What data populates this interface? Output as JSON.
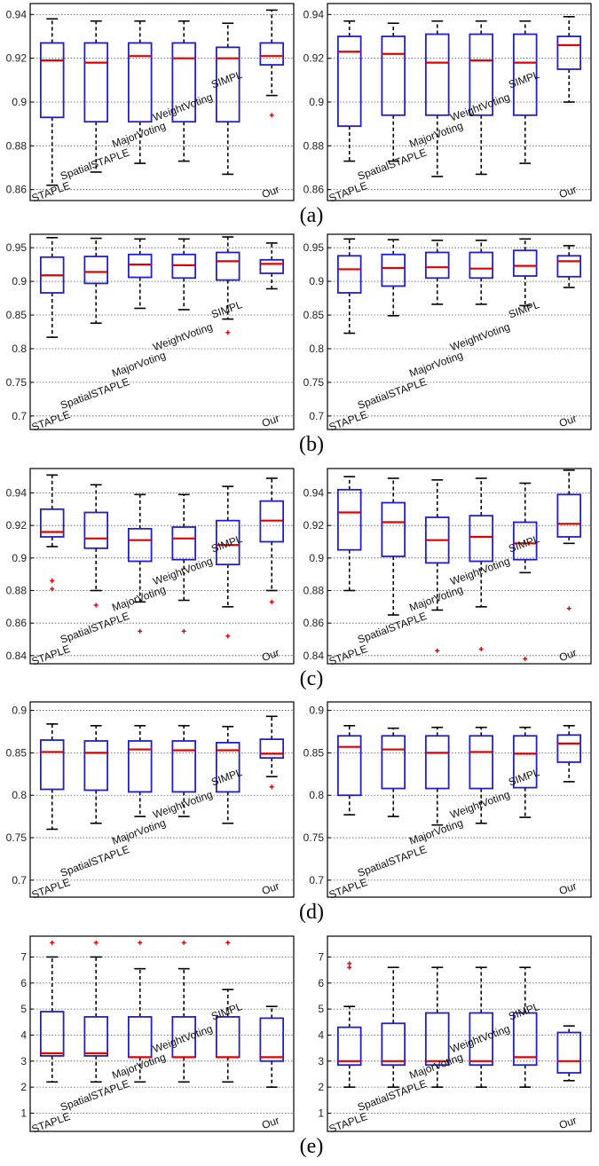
{
  "figure": {
    "panel_labels": [
      "(a)",
      "(b)",
      "(c)",
      "(d)",
      "(e)"
    ]
  },
  "chart_data": [
    {
      "type": "box",
      "panel": "(a)",
      "side": "left",
      "categories": [
        "STAPLE",
        "SpatialSTAPLE",
        "MajorVoting",
        "WeightVoting",
        "SIMPL",
        "Our"
      ],
      "ylim": [
        0.855,
        0.945
      ],
      "yticks": [
        0.86,
        0.88,
        0.9,
        0.92,
        0.94
      ],
      "ytick_labels": [
        "0.86",
        "0.88",
        "0.9",
        "0.92",
        "0.94"
      ],
      "grid": true,
      "boxes": [
        {
          "min": 0.862,
          "q1": 0.893,
          "median": 0.919,
          "q3": 0.927,
          "max": 0.938,
          "outliers": []
        },
        {
          "min": 0.868,
          "q1": 0.891,
          "median": 0.918,
          "q3": 0.927,
          "max": 0.937,
          "outliers": []
        },
        {
          "min": 0.872,
          "q1": 0.891,
          "median": 0.921,
          "q3": 0.927,
          "max": 0.937,
          "outliers": []
        },
        {
          "min": 0.873,
          "q1": 0.891,
          "median": 0.92,
          "q3": 0.927,
          "max": 0.937,
          "outliers": []
        },
        {
          "min": 0.867,
          "q1": 0.891,
          "median": 0.92,
          "q3": 0.925,
          "max": 0.936,
          "outliers": []
        },
        {
          "min": 0.903,
          "q1": 0.917,
          "median": 0.921,
          "q3": 0.927,
          "max": 0.942,
          "outliers": [
            0.894
          ]
        }
      ]
    },
    {
      "type": "box",
      "panel": "(a)",
      "side": "right",
      "categories": [
        "STAPLE",
        "SpatialSTAPLE",
        "MajorVoting",
        "WeightVoting",
        "SIMPL",
        "Our"
      ],
      "ylim": [
        0.855,
        0.945
      ],
      "yticks": [
        0.86,
        0.88,
        0.9,
        0.92,
        0.94
      ],
      "ytick_labels": [
        "0.86",
        "0.88",
        "0.9",
        "0.92",
        "0.94"
      ],
      "grid": true,
      "boxes": [
        {
          "min": 0.873,
          "q1": 0.889,
          "median": 0.923,
          "q3": 0.93,
          "max": 0.937,
          "outliers": []
        },
        {
          "min": 0.873,
          "q1": 0.894,
          "median": 0.922,
          "q3": 0.93,
          "max": 0.936,
          "outliers": []
        },
        {
          "min": 0.866,
          "q1": 0.894,
          "median": 0.918,
          "q3": 0.931,
          "max": 0.937,
          "outliers": []
        },
        {
          "min": 0.867,
          "q1": 0.894,
          "median": 0.919,
          "q3": 0.931,
          "max": 0.937,
          "outliers": []
        },
        {
          "min": 0.872,
          "q1": 0.894,
          "median": 0.918,
          "q3": 0.931,
          "max": 0.937,
          "outliers": []
        },
        {
          "min": 0.9,
          "q1": 0.915,
          "median": 0.926,
          "q3": 0.93,
          "max": 0.939,
          "outliers": []
        }
      ]
    },
    {
      "type": "box",
      "panel": "(b)",
      "side": "left",
      "categories": [
        "STAPLE",
        "SpatialSTAPLE",
        "MajorVoting",
        "WeightVoting",
        "SIMPL",
        "Our"
      ],
      "ylim": [
        0.68,
        0.97
      ],
      "yticks": [
        0.7,
        0.75,
        0.8,
        0.85,
        0.9,
        0.95
      ],
      "ytick_labels": [
        "0.7",
        "0.75",
        "0.8",
        "0.85",
        "0.9",
        "0.95"
      ],
      "grid": true,
      "boxes": [
        {
          "min": 0.817,
          "q1": 0.883,
          "median": 0.909,
          "q3": 0.936,
          "max": 0.965,
          "outliers": []
        },
        {
          "min": 0.838,
          "q1": 0.897,
          "median": 0.914,
          "q3": 0.937,
          "max": 0.964,
          "outliers": []
        },
        {
          "min": 0.86,
          "q1": 0.906,
          "median": 0.925,
          "q3": 0.94,
          "max": 0.963,
          "outliers": []
        },
        {
          "min": 0.858,
          "q1": 0.905,
          "median": 0.924,
          "q3": 0.94,
          "max": 0.963,
          "outliers": []
        },
        {
          "min": 0.844,
          "q1": 0.902,
          "median": 0.93,
          "q3": 0.943,
          "max": 0.966,
          "outliers": [
            0.824
          ]
        },
        {
          "min": 0.889,
          "q1": 0.912,
          "median": 0.926,
          "q3": 0.932,
          "max": 0.957,
          "outliers": []
        }
      ]
    },
    {
      "type": "box",
      "panel": "(b)",
      "side": "right",
      "categories": [
        "STAPLE",
        "SpatialSTAPLE",
        "MajorVoting",
        "WeightVoting",
        "SIMPL",
        "Our"
      ],
      "ylim": [
        0.68,
        0.97
      ],
      "yticks": [
        0.7,
        0.75,
        0.8,
        0.85,
        0.9,
        0.95
      ],
      "ytick_labels": [
        "0.7",
        "0.75",
        "0.8",
        "0.85",
        "0.9",
        "0.95"
      ],
      "grid": true,
      "boxes": [
        {
          "min": 0.823,
          "q1": 0.883,
          "median": 0.918,
          "q3": 0.938,
          "max": 0.963,
          "outliers": []
        },
        {
          "min": 0.849,
          "q1": 0.893,
          "median": 0.92,
          "q3": 0.94,
          "max": 0.962,
          "outliers": []
        },
        {
          "min": 0.866,
          "q1": 0.905,
          "median": 0.921,
          "q3": 0.943,
          "max": 0.961,
          "outliers": []
        },
        {
          "min": 0.866,
          "q1": 0.905,
          "median": 0.919,
          "q3": 0.943,
          "max": 0.961,
          "outliers": []
        },
        {
          "min": 0.864,
          "q1": 0.908,
          "median": 0.923,
          "q3": 0.946,
          "max": 0.963,
          "outliers": []
        },
        {
          "min": 0.891,
          "q1": 0.907,
          "median": 0.93,
          "q3": 0.938,
          "max": 0.953,
          "outliers": []
        }
      ]
    },
    {
      "type": "box",
      "panel": "(c)",
      "side": "left",
      "categories": [
        "STAPLE",
        "SpatialSTAPLE",
        "MajorVoting",
        "WeightVoting",
        "SIMPL",
        "Our"
      ],
      "ylim": [
        0.835,
        0.955
      ],
      "yticks": [
        0.84,
        0.86,
        0.88,
        0.9,
        0.92,
        0.94
      ],
      "ytick_labels": [
        "0.84",
        "0.86",
        "0.88",
        "0.9",
        "0.92",
        "0.94"
      ],
      "grid": true,
      "boxes": [
        {
          "min": 0.907,
          "q1": 0.913,
          "median": 0.916,
          "q3": 0.93,
          "max": 0.951,
          "outliers": [
            0.886,
            0.881
          ]
        },
        {
          "min": 0.88,
          "q1": 0.906,
          "median": 0.912,
          "q3": 0.928,
          "max": 0.945,
          "outliers": [
            0.871
          ]
        },
        {
          "min": 0.873,
          "q1": 0.898,
          "median": 0.911,
          "q3": 0.918,
          "max": 0.939,
          "outliers": [
            0.855
          ]
        },
        {
          "min": 0.874,
          "q1": 0.899,
          "median": 0.912,
          "q3": 0.919,
          "max": 0.939,
          "outliers": [
            0.855
          ]
        },
        {
          "min": 0.87,
          "q1": 0.896,
          "median": 0.908,
          "q3": 0.923,
          "max": 0.944,
          "outliers": [
            0.852
          ]
        },
        {
          "min": 0.88,
          "q1": 0.91,
          "median": 0.923,
          "q3": 0.935,
          "max": 0.949,
          "outliers": [
            0.873
          ]
        }
      ]
    },
    {
      "type": "box",
      "panel": "(c)",
      "side": "right",
      "categories": [
        "STAPLE",
        "SpatialSTAPLE",
        "MajorVoting",
        "WeightVoting",
        "SIMPL",
        "Our"
      ],
      "ylim": [
        0.835,
        0.955
      ],
      "yticks": [
        0.84,
        0.86,
        0.88,
        0.9,
        0.92,
        0.94
      ],
      "ytick_labels": [
        "0.84",
        "0.86",
        "0.88",
        "0.9",
        "0.92",
        "0.94"
      ],
      "grid": true,
      "boxes": [
        {
          "min": 0.88,
          "q1": 0.905,
          "median": 0.928,
          "q3": 0.942,
          "max": 0.95,
          "outliers": []
        },
        {
          "min": 0.865,
          "q1": 0.901,
          "median": 0.922,
          "q3": 0.934,
          "max": 0.949,
          "outliers": []
        },
        {
          "min": 0.868,
          "q1": 0.897,
          "median": 0.911,
          "q3": 0.925,
          "max": 0.948,
          "outliers": [
            0.843
          ]
        },
        {
          "min": 0.87,
          "q1": 0.898,
          "median": 0.913,
          "q3": 0.926,
          "max": 0.949,
          "outliers": [
            0.844
          ]
        },
        {
          "min": 0.891,
          "q1": 0.899,
          "median": 0.909,
          "q3": 0.922,
          "max": 0.946,
          "outliers": [
            0.838
          ]
        },
        {
          "min": 0.909,
          "q1": 0.913,
          "median": 0.921,
          "q3": 0.939,
          "max": 0.954,
          "outliers": [
            0.869
          ]
        }
      ]
    },
    {
      "type": "box",
      "panel": "(d)",
      "side": "left",
      "categories": [
        "STAPLE",
        "SpatialSTAPLE",
        "MajorVoting",
        "WeightVoting",
        "SIMPL",
        "Our"
      ],
      "ylim": [
        0.68,
        0.91
      ],
      "yticks": [
        0.7,
        0.75,
        0.8,
        0.85,
        0.9
      ],
      "ytick_labels": [
        "0.7",
        "0.75",
        "0.8",
        "0.85",
        "0.9"
      ],
      "grid": true,
      "boxes": [
        {
          "min": 0.76,
          "q1": 0.807,
          "median": 0.851,
          "q3": 0.865,
          "max": 0.884,
          "outliers": []
        },
        {
          "min": 0.767,
          "q1": 0.806,
          "median": 0.85,
          "q3": 0.864,
          "max": 0.882,
          "outliers": []
        },
        {
          "min": 0.775,
          "q1": 0.804,
          "median": 0.854,
          "q3": 0.864,
          "max": 0.882,
          "outliers": []
        },
        {
          "min": 0.775,
          "q1": 0.804,
          "median": 0.853,
          "q3": 0.864,
          "max": 0.882,
          "outliers": []
        },
        {
          "min": 0.767,
          "q1": 0.804,
          "median": 0.853,
          "q3": 0.862,
          "max": 0.881,
          "outliers": []
        },
        {
          "min": 0.822,
          "q1": 0.844,
          "median": 0.849,
          "q3": 0.866,
          "max": 0.893,
          "outliers": [
            0.81
          ]
        }
      ]
    },
    {
      "type": "box",
      "panel": "(d)",
      "side": "right",
      "categories": [
        "STAPLE",
        "SpatialSTAPLE",
        "MajorVoting",
        "WeightVoting",
        "SIMPL",
        "Our"
      ],
      "ylim": [
        0.68,
        0.91
      ],
      "yticks": [
        0.7,
        0.75,
        0.8,
        0.85,
        0.9
      ],
      "ytick_labels": [
        "0.7",
        "0.75",
        "0.8",
        "0.85",
        "0.9"
      ],
      "grid": true,
      "boxes": [
        {
          "min": 0.777,
          "q1": 0.8,
          "median": 0.857,
          "q3": 0.87,
          "max": 0.882,
          "outliers": []
        },
        {
          "min": 0.775,
          "q1": 0.808,
          "median": 0.854,
          "q3": 0.87,
          "max": 0.879,
          "outliers": []
        },
        {
          "min": 0.765,
          "q1": 0.808,
          "median": 0.85,
          "q3": 0.87,
          "max": 0.88,
          "outliers": []
        },
        {
          "min": 0.767,
          "q1": 0.808,
          "median": 0.851,
          "q3": 0.87,
          "max": 0.88,
          "outliers": []
        },
        {
          "min": 0.774,
          "q1": 0.809,
          "median": 0.849,
          "q3": 0.87,
          "max": 0.88,
          "outliers": []
        },
        {
          "min": 0.816,
          "q1": 0.839,
          "median": 0.861,
          "q3": 0.871,
          "max": 0.882,
          "outliers": []
        }
      ]
    },
    {
      "type": "box",
      "panel": "(e)",
      "side": "left",
      "categories": [
        "STAPLE",
        "SpatialSTAPLE",
        "MajorVoting",
        "WeightVoting",
        "SIMPL",
        "Our"
      ],
      "ylim": [
        0.3,
        7.8
      ],
      "yticks": [
        1,
        2,
        3,
        4,
        5,
        6,
        7
      ],
      "ytick_labels": [
        "1",
        "2",
        "3",
        "4",
        "5",
        "6",
        "7"
      ],
      "grid": true,
      "boxes": [
        {
          "min": 2.2,
          "q1": 3.2,
          "median": 3.3,
          "q3": 4.9,
          "max": 7.0,
          "outliers": [
            7.55
          ]
        },
        {
          "min": 2.2,
          "q1": 3.2,
          "median": 3.3,
          "q3": 4.7,
          "max": 7.0,
          "outliers": [
            7.55
          ]
        },
        {
          "min": 2.2,
          "q1": 3.15,
          "median": 3.15,
          "q3": 4.7,
          "max": 6.55,
          "outliers": [
            7.55
          ]
        },
        {
          "min": 2.2,
          "q1": 3.15,
          "median": 3.15,
          "q3": 4.7,
          "max": 6.55,
          "outliers": [
            7.55
          ]
        },
        {
          "min": 2.2,
          "q1": 3.15,
          "median": 3.15,
          "q3": 4.7,
          "max": 5.75,
          "outliers": [
            7.55
          ]
        },
        {
          "min": 2.0,
          "q1": 3.0,
          "median": 3.15,
          "q3": 4.65,
          "max": 5.1,
          "outliers": []
        }
      ]
    },
    {
      "type": "box",
      "panel": "(e)",
      "side": "right",
      "categories": [
        "STAPLE",
        "SpatialSTAPLE",
        "MajorVoting",
        "WeightVoting",
        "SIMPL",
        "Our"
      ],
      "ylim": [
        0.3,
        7.8
      ],
      "yticks": [
        1,
        2,
        3,
        4,
        5,
        6,
        7
      ],
      "ytick_labels": [
        "1",
        "2",
        "3",
        "4",
        "5",
        "6",
        "7"
      ],
      "grid": true,
      "boxes": [
        {
          "min": 2.0,
          "q1": 2.85,
          "median": 3.0,
          "q3": 4.3,
          "max": 5.1,
          "outliers": [
            6.75,
            6.6
          ]
        },
        {
          "min": 2.0,
          "q1": 2.85,
          "median": 3.0,
          "q3": 4.45,
          "max": 6.6,
          "outliers": []
        },
        {
          "min": 2.0,
          "q1": 2.85,
          "median": 3.0,
          "q3": 4.85,
          "max": 6.6,
          "outliers": []
        },
        {
          "min": 2.0,
          "q1": 2.85,
          "median": 3.0,
          "q3": 4.85,
          "max": 6.6,
          "outliers": []
        },
        {
          "min": 2.0,
          "q1": 2.85,
          "median": 3.15,
          "q3": 4.85,
          "max": 6.6,
          "outliers": []
        },
        {
          "min": 2.25,
          "q1": 2.55,
          "median": 3.0,
          "q3": 4.1,
          "max": 4.35,
          "outliers": []
        }
      ]
    }
  ]
}
